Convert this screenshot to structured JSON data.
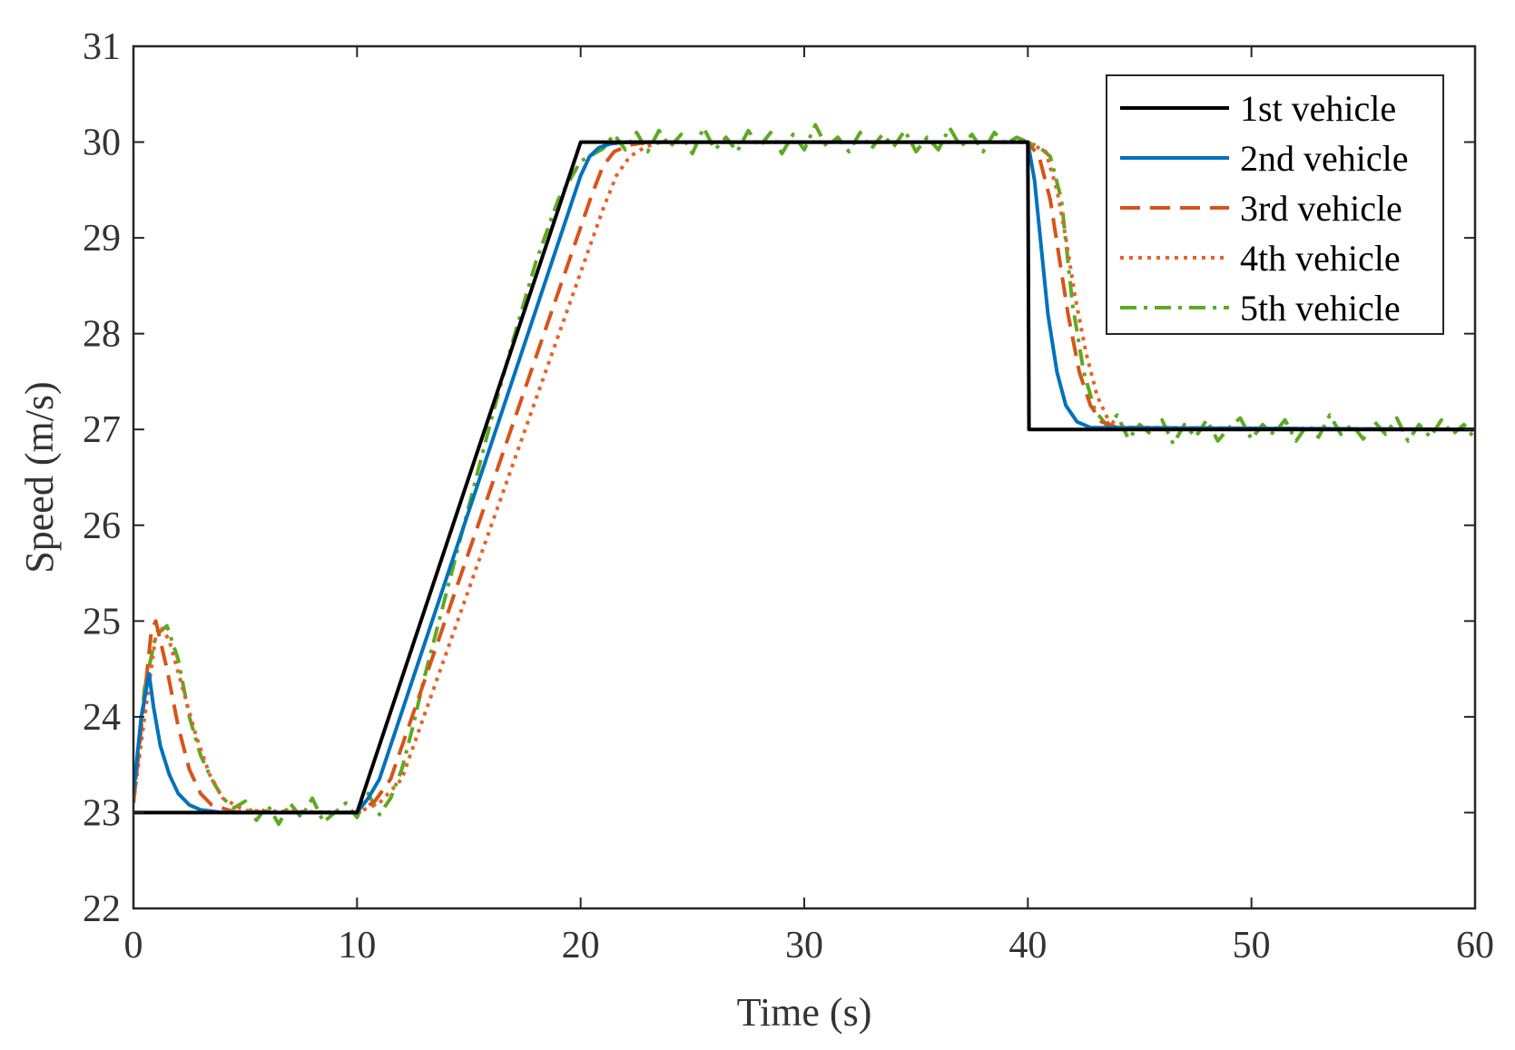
{
  "chart_data": {
    "type": "line",
    "title": "",
    "xlabel": "Time (s)",
    "ylabel": "Speed (m/s)",
    "xlim": [
      0,
      60
    ],
    "ylim": [
      22,
      31
    ],
    "xticks": [
      0,
      10,
      20,
      30,
      40,
      50,
      60
    ],
    "yticks": [
      22,
      23,
      24,
      25,
      26,
      27,
      28,
      29,
      30,
      31
    ],
    "grid": false,
    "legend_position": "top-right",
    "series": [
      {
        "name": "1st vehicle",
        "color": "#000000",
        "style": "solid",
        "x": [
          0,
          10,
          20,
          40,
          40.05,
          60
        ],
        "y": [
          23,
          23,
          30,
          30,
          27,
          27
        ]
      },
      {
        "name": "2nd vehicle",
        "color": "#0072BD",
        "style": "solid",
        "x": [
          0,
          0.35,
          0.7,
          0.9,
          1.2,
          1.6,
          2.0,
          2.5,
          3.0,
          4.0,
          10.0,
          10.5,
          11.0,
          20.0,
          20.4,
          20.8,
          21.3,
          21.8,
          22.5,
          40.0,
          40.3,
          40.6,
          40.9,
          41.3,
          41.7,
          42.2,
          42.8,
          60.0
        ],
        "y": [
          23.2,
          24.0,
          24.45,
          24.1,
          23.7,
          23.4,
          23.2,
          23.08,
          23.03,
          23.0,
          23.0,
          23.15,
          23.35,
          29.65,
          29.85,
          29.94,
          29.98,
          29.995,
          30.0,
          30.0,
          29.6,
          28.9,
          28.2,
          27.6,
          27.25,
          27.08,
          27.02,
          27.0
        ]
      },
      {
        "name": "3rd vehicle",
        "color": "#D95319",
        "style": "dashed",
        "x": [
          0,
          0.4,
          0.8,
          1.0,
          1.5,
          2.0,
          2.5,
          3.0,
          3.5,
          4.5,
          10.0,
          10.8,
          11.5,
          20.5,
          21.0,
          21.5,
          22.2,
          23.0,
          40.0,
          40.5,
          41.0,
          41.4,
          41.8,
          42.3,
          42.8,
          43.3,
          44.0,
          60.0
        ],
        "y": [
          23.1,
          24.0,
          24.9,
          25.0,
          24.5,
          23.9,
          23.45,
          23.2,
          23.08,
          23.01,
          23.0,
          23.12,
          23.35,
          29.45,
          29.75,
          29.9,
          29.97,
          30.0,
          30.0,
          29.85,
          29.4,
          28.8,
          28.2,
          27.6,
          27.25,
          27.08,
          27.02,
          27.0
        ]
      },
      {
        "name": "4th vehicle",
        "color": "#E8612A",
        "style": "dotted",
        "x": [
          0,
          0.5,
          1.0,
          1.2,
          1.6,
          2.2,
          2.8,
          3.4,
          4.0,
          5.0,
          10.0,
          11.0,
          12.0,
          21.0,
          21.6,
          22.2,
          22.9,
          23.6,
          40.0,
          40.8,
          41.3,
          41.7,
          42.1,
          42.6,
          43.1,
          43.6,
          44.3,
          60.0
        ],
        "y": [
          23.1,
          24.0,
          24.85,
          24.95,
          24.8,
          24.3,
          23.8,
          23.4,
          23.15,
          23.02,
          23.0,
          23.1,
          23.35,
          29.3,
          29.65,
          29.85,
          29.95,
          30.0,
          30.0,
          29.9,
          29.5,
          29.0,
          28.4,
          27.8,
          27.35,
          27.1,
          27.02,
          27.0
        ]
      },
      {
        "name": "5th vehicle",
        "color": "#5DAA20",
        "style": "dashdot",
        "x": [
          0,
          0.5,
          1.0,
          1.5,
          2.0,
          2.5,
          3.0,
          3.5,
          4.0,
          4.5,
          5.0,
          5.5,
          6.0,
          6.5,
          7.0,
          7.5,
          8.0,
          8.5,
          9.0,
          9.5,
          10.0,
          10.5,
          11.0,
          11.5,
          12.0,
          12.5,
          13.0,
          14.0,
          15.0,
          16.0,
          17.0,
          18.0,
          19.0,
          20.0,
          21.0,
          21.5,
          22.0,
          22.5,
          23.0,
          23.5,
          24.0,
          24.5,
          25.0,
          25.5,
          26.0,
          26.5,
          27.0,
          27.5,
          28.0,
          28.5,
          29.0,
          29.5,
          30.0,
          30.5,
          31.0,
          31.5,
          32.0,
          32.5,
          33.0,
          33.5,
          34.0,
          34.5,
          35.0,
          35.5,
          36.0,
          36.5,
          37.0,
          37.5,
          38.0,
          38.5,
          39.0,
          39.5,
          40.0,
          40.5,
          41.0,
          41.5,
          42.0,
          42.5,
          43.0,
          43.5,
          44.0,
          44.5,
          45.0,
          45.5,
          46.0,
          46.5,
          47.0,
          47.5,
          48.0,
          48.5,
          49.0,
          49.5,
          50.0,
          50.5,
          51.0,
          51.5,
          52.0,
          52.5,
          53.0,
          53.5,
          54.0,
          54.5,
          55.0,
          55.5,
          56.0,
          56.5,
          57.0,
          57.5,
          58.0,
          58.5,
          59.0,
          59.5,
          60.0
        ],
        "y": [
          23.1,
          24.3,
          24.85,
          24.95,
          24.6,
          24.0,
          23.6,
          23.35,
          23.15,
          23.05,
          23.12,
          22.92,
          23.08,
          22.88,
          23.1,
          22.95,
          23.15,
          22.9,
          23.0,
          23.1,
          22.95,
          23.2,
          22.98,
          23.15,
          23.45,
          23.9,
          24.4,
          25.3,
          26.2,
          27.1,
          27.95,
          28.75,
          29.4,
          29.8,
          29.93,
          30.08,
          29.92,
          30.1,
          29.9,
          30.12,
          29.95,
          30.08,
          29.88,
          30.15,
          29.92,
          30.05,
          29.9,
          30.12,
          29.95,
          30.1,
          29.88,
          30.08,
          29.92,
          30.18,
          29.95,
          30.05,
          29.9,
          30.1,
          29.93,
          30.08,
          29.95,
          30.12,
          29.9,
          30.05,
          29.92,
          30.15,
          29.95,
          30.08,
          29.9,
          30.1,
          29.98,
          30.05,
          30.0,
          29.95,
          29.85,
          29.4,
          28.3,
          27.6,
          27.2,
          27.05,
          27.15,
          26.9,
          27.05,
          26.95,
          27.1,
          26.85,
          27.05,
          26.92,
          27.1,
          26.88,
          27.02,
          27.12,
          26.9,
          27.05,
          26.95,
          27.1,
          26.88,
          27.05,
          26.92,
          27.15,
          26.95,
          27.05,
          26.9,
          27.08,
          26.95,
          27.12,
          26.88,
          27.05,
          26.92,
          27.1,
          26.95,
          27.05,
          26.9
        ]
      }
    ]
  }
}
